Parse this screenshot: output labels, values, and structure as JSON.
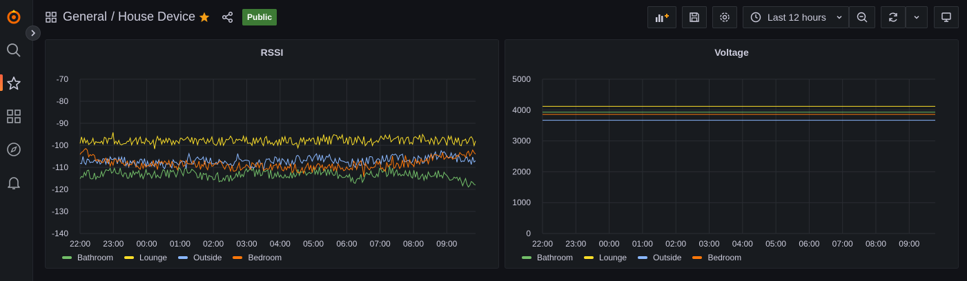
{
  "header": {
    "folder": "General",
    "title": "/ House Device",
    "badge": "Public",
    "time_range": "Last 12 hours"
  },
  "sidebar": {
    "items": [
      {
        "name": "search-icon"
      },
      {
        "name": "star-icon"
      },
      {
        "name": "dashboards-icon"
      },
      {
        "name": "explore-icon"
      },
      {
        "name": "alerting-icon"
      }
    ]
  },
  "colors": {
    "Bathroom": "#73bf69",
    "Lounge": "#fade2a",
    "Outside": "#8ab8ff",
    "Bedroom": "#ff780a"
  },
  "chart_data": [
    {
      "type": "line",
      "title": "RSSI",
      "x_ticks": [
        "22:00",
        "23:00",
        "00:00",
        "01:00",
        "02:00",
        "03:00",
        "04:00",
        "05:00",
        "06:00",
        "07:00",
        "08:00",
        "09:00"
      ],
      "ylim": [
        -140,
        -70
      ],
      "y_ticks": [
        -70,
        -80,
        -90,
        -100,
        -110,
        -120,
        -130,
        -140
      ],
      "series": [
        {
          "name": "Bathroom",
          "values": [
            -113,
            -114,
            -112,
            -113,
            -113,
            -113,
            -112,
            -114,
            -115,
            -114,
            -112,
            -113,
            -114,
            -112,
            -112,
            -113,
            -116,
            -113,
            -112,
            -113,
            -114,
            -113,
            -116,
            -118
          ]
        },
        {
          "name": "Lounge",
          "values": [
            -97,
            -98,
            -98,
            -98,
            -98,
            -98,
            -98,
            -98,
            -98,
            -98,
            -98,
            -98,
            -98,
            -98,
            -98,
            -97,
            -98,
            -98,
            -97,
            -98,
            -97,
            -98,
            -98,
            -98
          ]
        },
        {
          "name": "Outside",
          "values": [
            -106,
            -108,
            -106,
            -108,
            -108,
            -109,
            -108,
            -107,
            -108,
            -108,
            -109,
            -107,
            -108,
            -106,
            -106,
            -107,
            -108,
            -107,
            -106,
            -106,
            -107,
            -104,
            -106,
            -107
          ]
        },
        {
          "name": "Bedroom",
          "values": [
            -102,
            -106,
            -108,
            -109,
            -109,
            -109,
            -109,
            -109,
            -109,
            -110,
            -110,
            -109,
            -110,
            -111,
            -110,
            -110,
            -109,
            -109,
            -110,
            -108,
            -107,
            -105,
            -104,
            -104
          ]
        }
      ]
    },
    {
      "type": "line",
      "title": "Voltage",
      "x_ticks": [
        "22:00",
        "23:00",
        "00:00",
        "01:00",
        "02:00",
        "03:00",
        "04:00",
        "05:00",
        "06:00",
        "07:00",
        "08:00",
        "09:00"
      ],
      "ylim": [
        0,
        5000
      ],
      "y_ticks": [
        5000,
        4000,
        3000,
        2000,
        1000,
        0
      ],
      "series": [
        {
          "name": "Bathroom",
          "values": [
            3930,
            3930,
            3930,
            3930,
            3930,
            3930,
            3930,
            3930,
            3930,
            3930,
            3930,
            3930,
            3930,
            3930,
            3930,
            3930,
            3930,
            3930,
            3930,
            3930,
            3930,
            3930,
            3930,
            3930
          ]
        },
        {
          "name": "Lounge",
          "values": [
            4120,
            4120,
            4120,
            4120,
            4120,
            4120,
            4120,
            4120,
            4120,
            4120,
            4120,
            4120,
            4120,
            4120,
            4120,
            4120,
            4120,
            4120,
            4120,
            4120,
            4120,
            4120,
            4120,
            4120
          ]
        },
        {
          "name": "Outside",
          "values": [
            3670,
            3670,
            3670,
            3670,
            3670,
            3670,
            3670,
            3670,
            3670,
            3670,
            3670,
            3670,
            3670,
            3670,
            3670,
            3670,
            3670,
            3670,
            3670,
            3670,
            3670,
            3670,
            3670,
            3670
          ]
        },
        {
          "name": "Bedroom",
          "values": [
            3860,
            3860,
            3860,
            3860,
            3860,
            3860,
            3860,
            3860,
            3860,
            3860,
            3860,
            3860,
            3860,
            3860,
            3860,
            3860,
            3860,
            3860,
            3860,
            3860,
            3860,
            3860,
            3860,
            3860
          ]
        }
      ]
    }
  ]
}
